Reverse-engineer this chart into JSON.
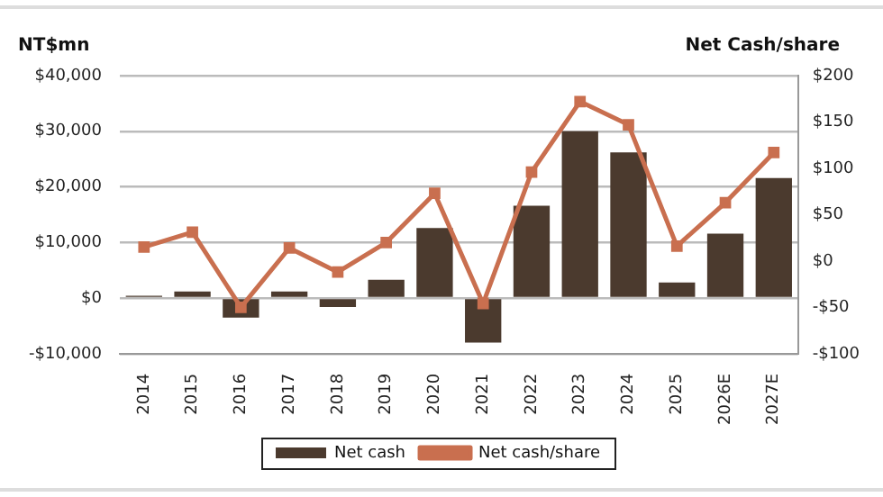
{
  "chart_data": {
    "type": "bar",
    "categories": [
      "2014",
      "2015",
      "2016",
      "2017",
      "2018",
      "2019",
      "2020",
      "2021",
      "2022",
      "2023",
      "2024",
      "2025",
      "2026E",
      "2027E"
    ],
    "ylabel": "NT$mn",
    "y2label": "Net Cash/share",
    "series": [
      {
        "name": "Net cash",
        "color": "#4b3a2e",
        "values": [
          400,
          1200,
          -3500,
          1200,
          -1600,
          3300,
          12600,
          -8000,
          16600,
          30000,
          26200,
          2800,
          11600,
          21600
        ]
      },
      {
        "name": "Net cash/share",
        "type": "line",
        "axis": "y2",
        "color": "#c96f4f",
        "values": [
          15,
          31,
          -50,
          14,
          -12,
          20,
          73,
          -46,
          96,
          172,
          147,
          16,
          63,
          117
        ]
      }
    ],
    "ylim": [
      -10000,
      40000
    ],
    "yticks": [
      {
        "value": -10000,
        "label": "-$10,000"
      },
      {
        "value": 0,
        "label": "$0"
      },
      {
        "value": 10000,
        "label": "$10,000"
      },
      {
        "value": 20000,
        "label": "$20,000"
      },
      {
        "value": 30000,
        "label": "$30,000"
      },
      {
        "value": 40000,
        "label": "$40,000"
      }
    ],
    "y2lim": [
      -100,
      200
    ],
    "y2ticks": [
      {
        "value": -100,
        "label": "-$100"
      },
      {
        "value": -50,
        "label": "-$50"
      },
      {
        "value": 0,
        "label": "$0"
      },
      {
        "value": 50,
        "label": "$50"
      },
      {
        "value": 100,
        "label": "$100"
      },
      {
        "value": 150,
        "label": "$150"
      },
      {
        "value": 200,
        "label": "$200"
      }
    ],
    "grid": "y",
    "legend": "bottom",
    "marker": "square",
    "line_style": "solid"
  }
}
